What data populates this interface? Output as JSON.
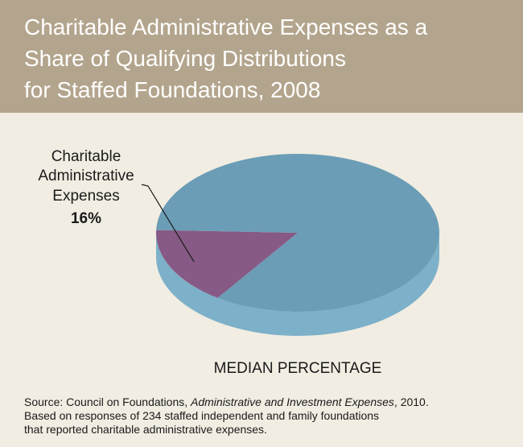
{
  "header": {
    "title_lines": [
      "Charitable Administrative Expenses as a",
      "Share of Qualifying Distributions",
      "for Staffed Foundations, 2008"
    ]
  },
  "colors": {
    "header_bg": "#b3a58d",
    "page_bg": "#f1ede2",
    "slice_admin": "#865a85",
    "slice_other": "#6b9db6",
    "pie_side": "#7db0c9"
  },
  "chart_data": {
    "type": "pie",
    "title": "Charitable Administrative Expenses as a Share of Qualifying Distributions for Staffed Foundations, 2008",
    "xlabel": "MEDIAN PERCENTAGE",
    "slices": [
      {
        "label_lines": [
          "Charitable",
          "Administrative",
          "Expenses"
        ],
        "value": 16,
        "value_label": "16%"
      },
      {
        "label_lines": [],
        "value": 84,
        "value_label": ""
      }
    ]
  },
  "source": {
    "prefix": "Source: Council on Foundations, ",
    "publication": "Administrative and Investment Expenses",
    "suffix": ", 2010.",
    "lines": [
      "Based on responses of 234 staffed independent and family foundations",
      "that reported charitable administrative expenses."
    ]
  }
}
